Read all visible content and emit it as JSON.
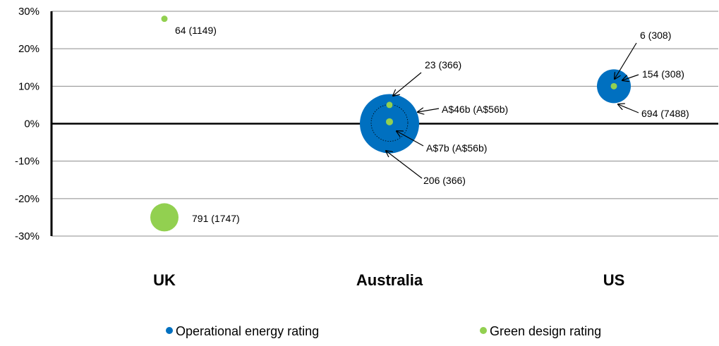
{
  "chart_data": {
    "type": "scatter",
    "variant": "bubble",
    "title": "",
    "xlabel": "",
    "ylabel": "",
    "categories": [
      "UK",
      "Australia",
      "US"
    ],
    "ylim": [
      -30,
      30
    ],
    "yticks": [
      "30%",
      "20%",
      "10%",
      "0%",
      "-10%",
      "-20%",
      "-30%"
    ],
    "ytick_values": [
      30,
      20,
      10,
      0,
      -10,
      -20,
      -30
    ],
    "grid": true,
    "legend_position": "bottom",
    "series": [
      {
        "name": "Operational energy rating",
        "color": "#0070C0",
        "points": [
          {
            "category": "Australia",
            "y": 0,
            "size": 46
          },
          {
            "category": "US",
            "y": 10,
            "size": 694
          }
        ]
      },
      {
        "name": "Green design rating",
        "color": "#92D050",
        "points": [
          {
            "category": "UK",
            "y": 28,
            "size": 64
          },
          {
            "category": "UK",
            "y": -25,
            "size": 791
          },
          {
            "category": "Australia",
            "y": 5,
            "size": 23
          },
          {
            "category": "Australia",
            "y": 0.5,
            "size": 7
          },
          {
            "category": "US",
            "y": 10,
            "size": 6
          }
        ]
      }
    ],
    "annotations": [
      "64 (1149)",
      "791 (1747)",
      "23 (366)",
      "A$46b (A$56b)",
      "A$7b (A$56b)",
      "206 (366)",
      "6 (308)",
      "154 (308)",
      "694 (7488)"
    ]
  }
}
